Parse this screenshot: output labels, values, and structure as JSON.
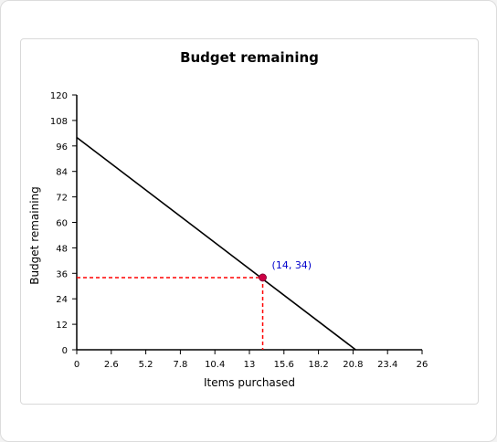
{
  "chart_data": {
    "type": "line",
    "title": "Budget remaining",
    "xlabel": "Items purchased",
    "ylabel": "Budget remaining",
    "xlim": [
      0,
      26
    ],
    "ylim": [
      0,
      120
    ],
    "x_ticks": [
      "0",
      "2.6",
      "5.2",
      "7.8",
      "10.4",
      "13",
      "15.6",
      "18.2",
      "20.8",
      "23.4",
      "26"
    ],
    "y_ticks": [
      "0",
      "12",
      "24",
      "36",
      "48",
      "60",
      "72",
      "84",
      "96",
      "108",
      "120"
    ],
    "grid": false,
    "series": [
      {
        "x": [
          0,
          21
        ],
        "y": [
          100,
          0
        ],
        "color": "#000000"
      }
    ],
    "highlight_point": {
      "x": 14,
      "y": 34,
      "label": "(14, 34)",
      "marker_color": "#cc0044",
      "label_color": "#0000cc",
      "guide_color": "#ff0000"
    }
  }
}
